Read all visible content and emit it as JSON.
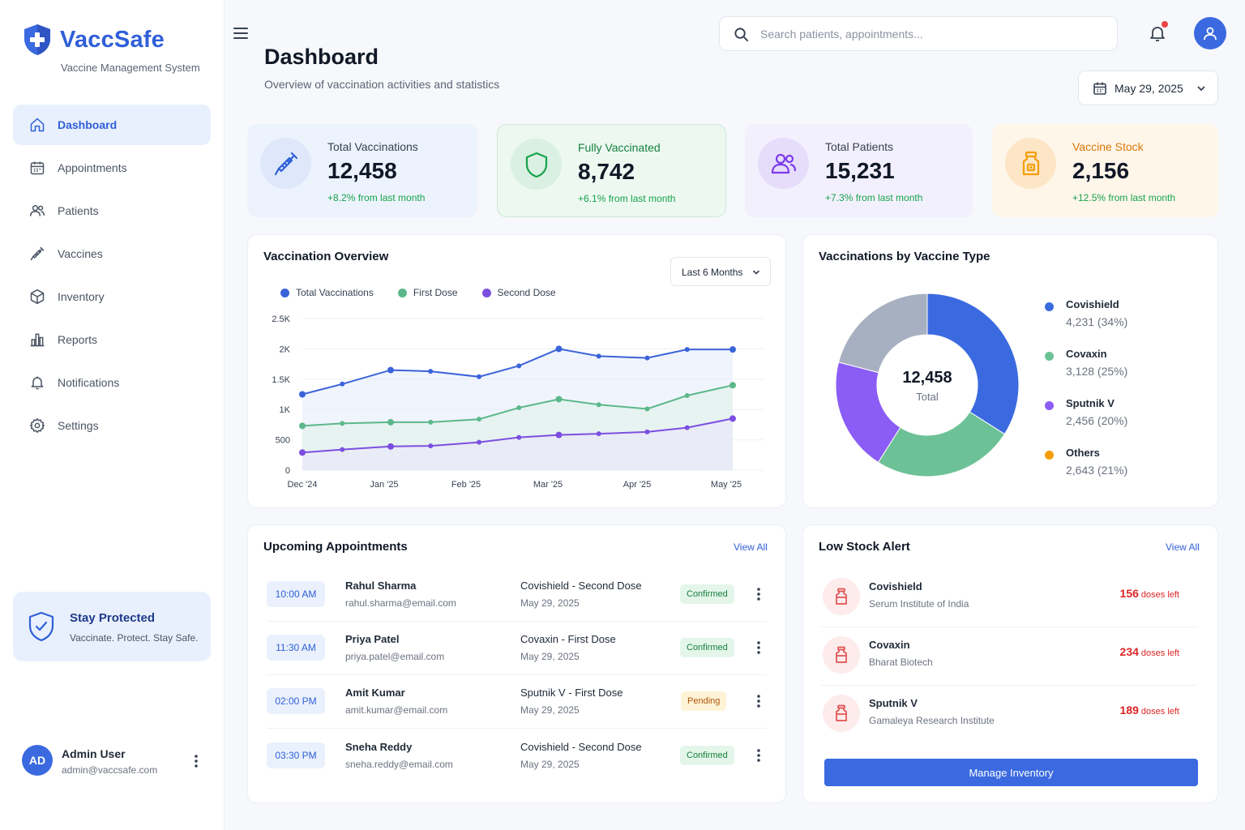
{
  "brand": {
    "name": "VaccSafe",
    "subtitle": "Vaccine Management System"
  },
  "sidebar": {
    "items": [
      {
        "label": "Dashboard",
        "icon": "home-icon",
        "active": true
      },
      {
        "label": "Appointments",
        "icon": "calendar-icon"
      },
      {
        "label": "Patients",
        "icon": "users-icon"
      },
      {
        "label": "Vaccines",
        "icon": "syringe-icon"
      },
      {
        "label": "Inventory",
        "icon": "box-icon"
      },
      {
        "label": "Reports",
        "icon": "bar-chart-icon"
      },
      {
        "label": "Notifications",
        "icon": "bell-icon"
      },
      {
        "label": "Settings",
        "icon": "gear-icon"
      }
    ],
    "promo": {
      "title": "Stay Protected",
      "subtitle": "Vaccinate. Protect. Stay Safe."
    },
    "user": {
      "initials": "AD",
      "name": "Admin User",
      "email": "admin@vaccsafe.com"
    }
  },
  "header": {
    "title": "Dashboard",
    "subtitle": "Overview of vaccination activities and statistics",
    "search_placeholder": "Search patients, appointments...",
    "date": "May 29, 2025"
  },
  "stats": [
    {
      "label": "Total Vaccinations",
      "value": "12,458",
      "change": "+8.2% from last month",
      "bg": "#edf3fd",
      "icon_bg": "#dfe8fb",
      "icon_color": "#2f5fd8",
      "label_color": "#374151"
    },
    {
      "label": "Fully Vaccinated",
      "value": "8,742",
      "change": "+6.1% from last month",
      "bg": "#edf8f1",
      "icon_bg": "#d9f0e2",
      "icon_color": "#16a34a",
      "label_color": "#15803d"
    },
    {
      "label": "Total Patients",
      "value": "15,231",
      "change": "+7.3% from last month",
      "bg": "#f3f0fd",
      "icon_bg": "#e6ddfb",
      "icon_color": "#7c3aed",
      "label_color": "#374151"
    },
    {
      "label": "Vaccine Stock",
      "value": "2,156",
      "change": "+12.5% from last month",
      "bg": "#fff6ea",
      "icon_bg": "#fde6c6",
      "icon_color": "#f59e0b",
      "label_color": "#d97706"
    }
  ],
  "overview": {
    "title": "Vaccination Overview",
    "range": "Last 6 Months"
  },
  "chart_data": {
    "type": "line",
    "title": "Vaccination Overview",
    "x_ticks": [
      "Dec '24",
      "Jan '25",
      "Feb '25",
      "Mar '25",
      "Apr '25",
      "May '25"
    ],
    "y_ticks": [
      "0",
      "500",
      "1K",
      "1.5K",
      "2K",
      "2.5K"
    ],
    "ylim": [
      0,
      2500
    ],
    "x": [
      "2024-12-01",
      "2024-12-15",
      "2025-01-01",
      "2025-01-15",
      "2025-02-01",
      "2025-02-15",
      "2025-03-01",
      "2025-03-15",
      "2025-04-01",
      "2025-04-15",
      "2025-05-01"
    ],
    "series": [
      {
        "name": "Total Vaccinations",
        "color": "#3b63d9",
        "values": [
          1250,
          1420,
          1650,
          1630,
          1540,
          1720,
          2000,
          1880,
          1850,
          1990,
          1990
        ]
      },
      {
        "name": "First Dose",
        "color": "#5cb88a",
        "values": [
          730,
          770,
          790,
          790,
          840,
          1030,
          1170,
          1080,
          1010,
          1230,
          1400
        ]
      },
      {
        "name": "Second Dose",
        "color": "#7c4fe0",
        "values": [
          290,
          340,
          390,
          400,
          460,
          540,
          580,
          600,
          630,
          700,
          850
        ]
      }
    ],
    "grid": true,
    "legend": "top-left"
  },
  "vaccine_type": {
    "title": "Vaccinations by Vaccine Type",
    "total_value": "12,458",
    "total_label": "Total",
    "slices": [
      {
        "name": "Covishield",
        "display": "4,231 (34%)",
        "value": 34,
        "color": "#3b6ae0"
      },
      {
        "name": "Covaxin",
        "display": "3,128 (25%)",
        "value": 25,
        "color": "#6cc296"
      },
      {
        "name": "Sputnik V",
        "display": "2,456 (20%)",
        "value": 20,
        "color": "#8b5cf6"
      },
      {
        "name": "Others",
        "display": "2,643 (21%)",
        "value": 21,
        "color": "#f59e0b",
        "chart_color": "#a7b0c0"
      }
    ]
  },
  "appointments": {
    "title": "Upcoming Appointments",
    "view_all": "View All",
    "rows": [
      {
        "time": "10:00 AM",
        "name": "Rahul Sharma",
        "email": "rahul.sharma@email.com",
        "vaccine": "Covishield - Second Dose",
        "date": "May 29, 2025",
        "status": "Confirmed",
        "status_type": "confirmed"
      },
      {
        "time": "11:30 AM",
        "name": "Priya Patel",
        "email": "priya.patel@email.com",
        "vaccine": "Covaxin - First Dose",
        "date": "May 29, 2025",
        "status": "Confirmed",
        "status_type": "confirmed"
      },
      {
        "time": "02:00 PM",
        "name": "Amit Kumar",
        "email": "amit.kumar@email.com",
        "vaccine": "Sputnik V - First Dose",
        "date": "May 29, 2025",
        "status": "Pending",
        "status_type": "pending"
      },
      {
        "time": "03:30 PM",
        "name": "Sneha Reddy",
        "email": "sneha.reddy@email.com",
        "vaccine": "Covishield - Second Dose",
        "date": "May 29, 2025",
        "status": "Confirmed",
        "status_type": "confirmed"
      }
    ]
  },
  "low_stock": {
    "title": "Low Stock Alert",
    "view_all": "View All",
    "items": [
      {
        "name": "Covishield",
        "manufacturer": "Serum Institute of India",
        "doses": "156",
        "doses_label": "doses left"
      },
      {
        "name": "Covaxin",
        "manufacturer": "Bharat Biotech",
        "doses": "234",
        "doses_label": "doses left"
      },
      {
        "name": "Sputnik V",
        "manufacturer": "Gamaleya Research Institute",
        "doses": "189",
        "doses_label": "doses left"
      }
    ],
    "button": "Manage Inventory"
  }
}
